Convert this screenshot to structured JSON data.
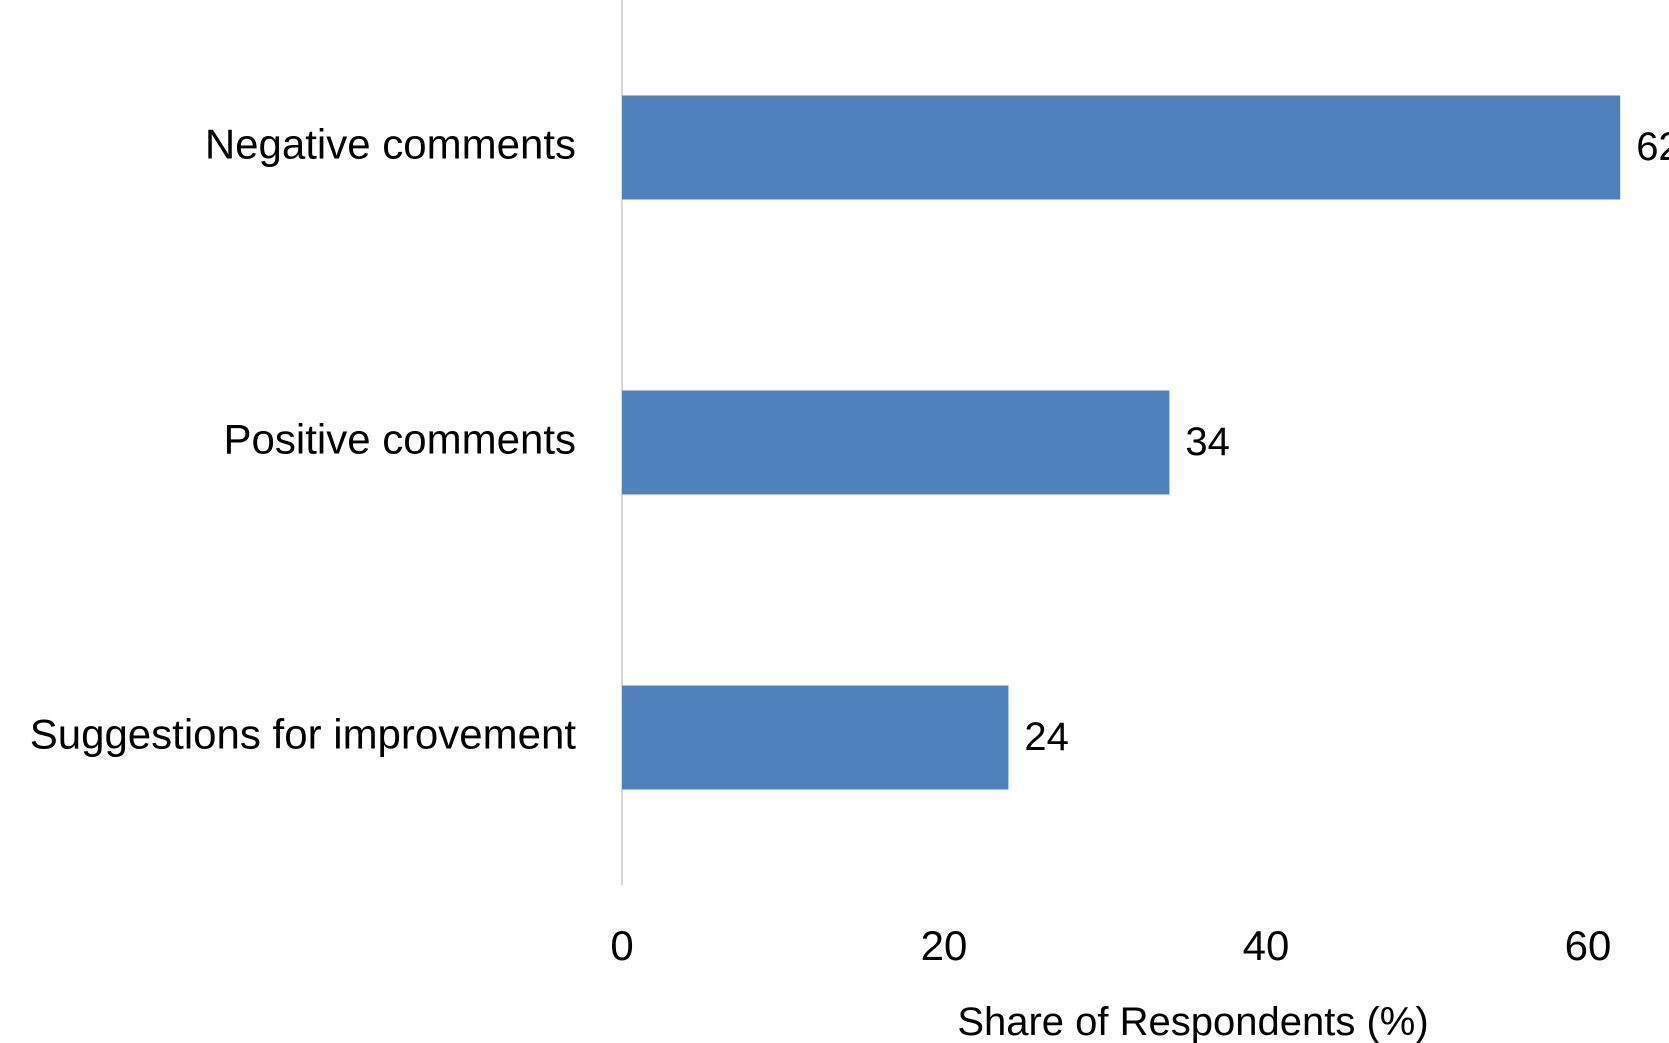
{
  "colors": {
    "bar": "#4f81bd",
    "axis": "#d9d9d9",
    "text": "#000000"
  },
  "chart_data": {
    "type": "bar",
    "orientation": "horizontal",
    "categories": [
      "Negative comments",
      "Positive comments",
      "Suggestions for improvement"
    ],
    "values": [
      62,
      34,
      24
    ],
    "xlabel": "Share of Respondents (%)",
    "ylabel": "",
    "xlim": [
      0,
      62
    ],
    "xticks": [
      0,
      20,
      40,
      60
    ],
    "data_labels": true,
    "grid": false,
    "legend": "none"
  }
}
